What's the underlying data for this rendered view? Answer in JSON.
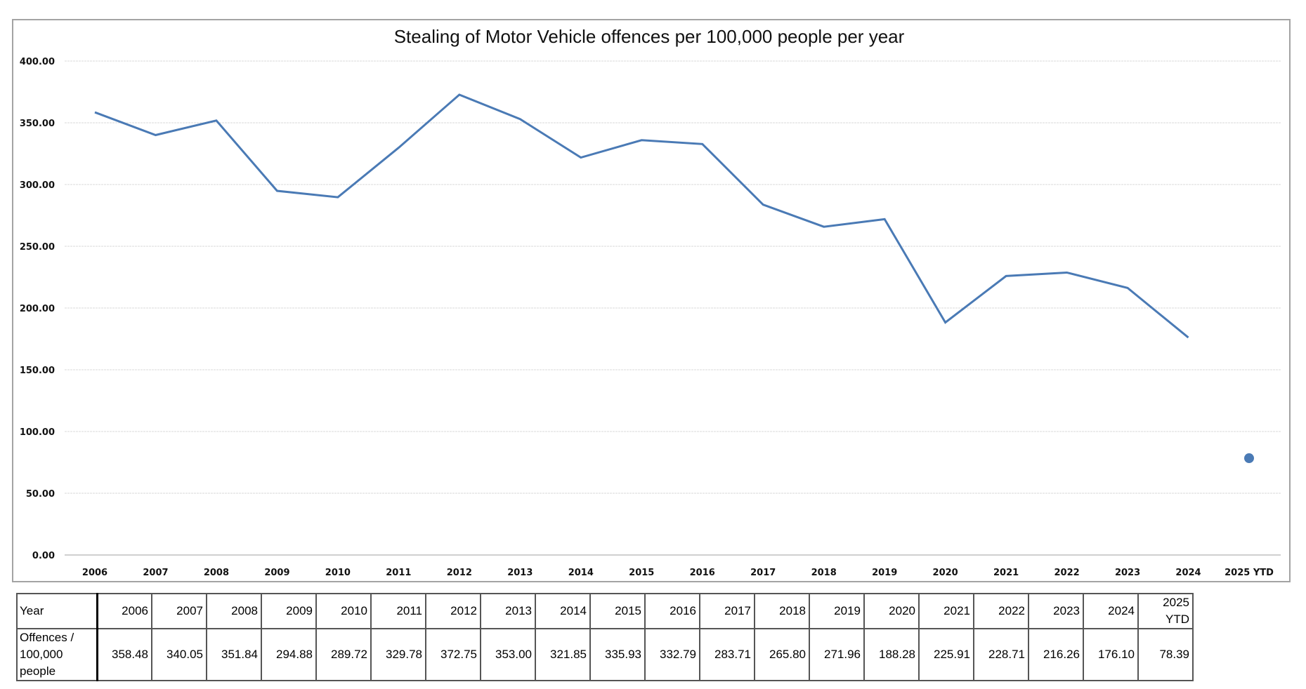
{
  "chart_data": {
    "type": "line",
    "title": "Stealing of Motor Vehicle offences per 100,000 people per year",
    "xlabel": "",
    "ylabel": "",
    "ylim": [
      0,
      400
    ],
    "yticks": [
      "0.00",
      "50.00",
      "100.00",
      "150.00",
      "200.00",
      "250.00",
      "300.00",
      "350.00",
      "400.00"
    ],
    "ytick_values": [
      0,
      50,
      100,
      150,
      200,
      250,
      300,
      350,
      400
    ],
    "grid": true,
    "legend": "none",
    "categories": [
      "2006",
      "2007",
      "2008",
      "2009",
      "2010",
      "2011",
      "2012",
      "2013",
      "2014",
      "2015",
      "2016",
      "2017",
      "2018",
      "2019",
      "2020",
      "2021",
      "2022",
      "2023",
      "2024",
      "2025 YTD"
    ],
    "series": [
      {
        "name": "Offences / 100,000 people",
        "color": "#4a7ab5",
        "values": [
          358.48,
          340.05,
          351.84,
          294.88,
          289.72,
          329.78,
          372.75,
          353.0,
          321.85,
          335.93,
          332.79,
          283.71,
          265.8,
          271.96,
          188.28,
          225.91,
          228.71,
          216.26,
          176.1,
          78.39
        ],
        "line_through_index": 18,
        "marker_only_indices": [
          19
        ]
      }
    ]
  },
  "table": {
    "row_headers": [
      "Year",
      "Offences / 100,000 people"
    ],
    "row_header_lines": [
      [
        "Year"
      ],
      [
        "Offences /",
        "100,000",
        "people"
      ]
    ],
    "years": [
      "2006",
      "2007",
      "2008",
      "2009",
      "2010",
      "2011",
      "2012",
      "2013",
      "2014",
      "2015",
      "2016",
      "2017",
      "2018",
      "2019",
      "2020",
      "2021",
      "2022",
      "2023",
      "2024",
      "2025 YTD"
    ],
    "year_lines": [
      [
        "2006"
      ],
      [
        "2007"
      ],
      [
        "2008"
      ],
      [
        "2009"
      ],
      [
        "2010"
      ],
      [
        "2011"
      ],
      [
        "2012"
      ],
      [
        "2013"
      ],
      [
        "2014"
      ],
      [
        "2015"
      ],
      [
        "2016"
      ],
      [
        "2017"
      ],
      [
        "2018"
      ],
      [
        "2019"
      ],
      [
        "2020"
      ],
      [
        "2021"
      ],
      [
        "2022"
      ],
      [
        "2023"
      ],
      [
        "2024"
      ],
      [
        "2025",
        "YTD"
      ]
    ],
    "values": [
      "358.48",
      "340.05",
      "351.84",
      "294.88",
      "289.72",
      "329.78",
      "372.75",
      "353.00",
      "321.85",
      "335.93",
      "332.79",
      "283.71",
      "265.80",
      "271.96",
      "188.28",
      "225.91",
      "228.71",
      "216.26",
      "176.10",
      "78.39"
    ]
  }
}
